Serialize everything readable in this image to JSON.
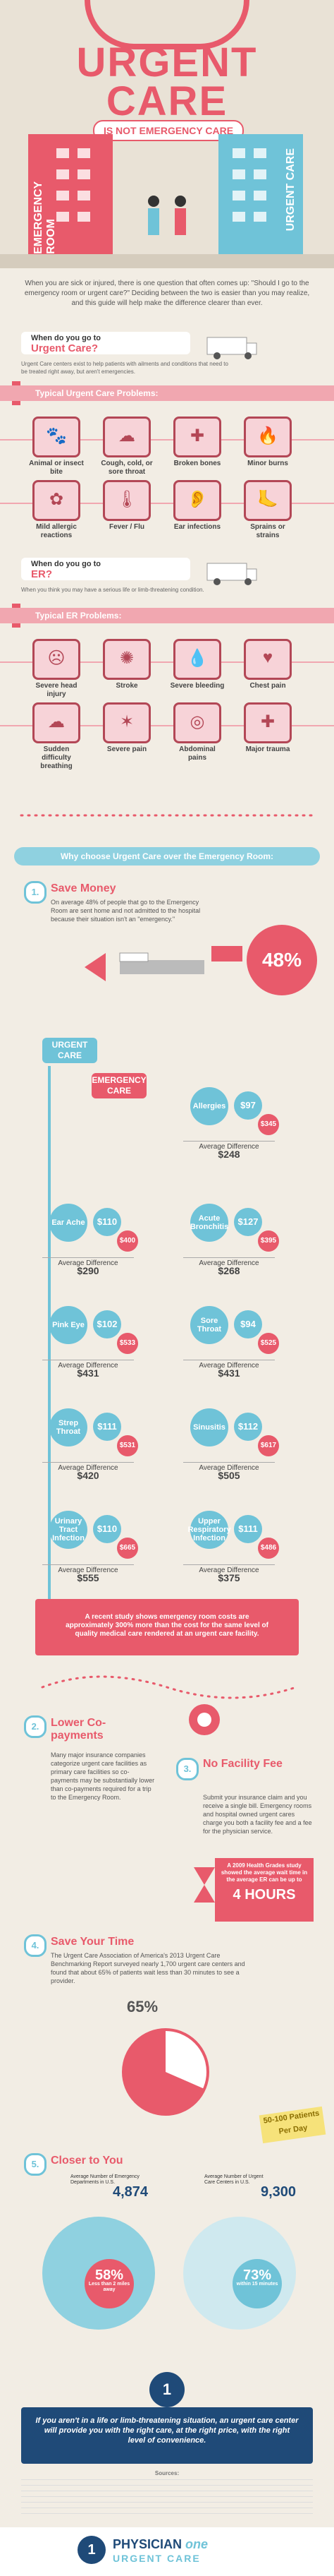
{
  "header": {
    "title_word1": "URGENT",
    "title_word2": "CARE",
    "subtitle": "IS NOT EMERGENCY CARE",
    "er_building_label": "EMERGENCY ROOM",
    "uc_building_label": "URGENT CARE"
  },
  "intro_text": "When you are sick or injured, there is one question that often comes up: \"Should I go to the emergency room or urgent care?\" Deciding between the two is easier than you may realize, and this guide will help make the difference clearer than ever.",
  "urgent_section": {
    "q1": "When do you go to",
    "q2": "Urgent Care?",
    "desc": "Urgent Care centers exist to help patients with ailments and conditions that need to be treated right away, but aren't emergencies.",
    "bar_label": "Typical Urgent Care Problems:",
    "items": [
      "Animal or insect bite",
      "Cough, cold, or sore throat",
      "Broken bones",
      "Minor burns",
      "Mild allergic reactions",
      "Fever / Flu",
      "Ear infections",
      "Sprains or strains"
    ]
  },
  "er_section": {
    "q1": "When do you go to",
    "q2": "ER?",
    "desc": "When you think you may have a serious life or limb-threatening condition.",
    "bar_label": "Typical ER Problems:",
    "items": [
      "Severe head injury",
      "Stroke",
      "Severe bleeding",
      "Chest pain",
      "Sudden difficulty breathing",
      "Severe pain",
      "Abdominal pains",
      "Major trauma"
    ]
  },
  "why_bar": "Why choose Urgent Care over the Emergency Room:",
  "step1": {
    "num": "1.",
    "title": "Save Money",
    "text": "On average 48% of people that go to the Emergency Room are sent home and not admitted to the hospital because their situation isn't an \"emergency.\"",
    "pct": "48%"
  },
  "comparison": {
    "uc_label": "URGENT CARE",
    "er_label": "EMERGENCY CARE",
    "rows": [
      {
        "name": "Allergies",
        "uc": "$97",
        "er": "$345",
        "diff": "$248"
      },
      {
        "name": "Ear Ache",
        "uc": "$110",
        "er": "$400",
        "diff": "$290"
      },
      {
        "name": "Acute Bronchitis",
        "uc": "$127",
        "er": "$395",
        "diff": "$268"
      },
      {
        "name": "Pink Eye",
        "uc": "$102",
        "er": "$533",
        "diff": "$431"
      },
      {
        "name": "Sore Throat",
        "uc": "$94",
        "er": "$525",
        "diff": "$431"
      },
      {
        "name": "Strep Throat",
        "uc": "$111",
        "er": "$531",
        "diff": "$420"
      },
      {
        "name": "Sinusitis",
        "uc": "$112",
        "er": "$617",
        "diff": "$505"
      },
      {
        "name": "Urinary Tract Infection",
        "uc": "$110",
        "er": "$665",
        "diff": "$555"
      },
      {
        "name": "Upper Respiratory Infection",
        "uc": "$111",
        "er": "$486",
        "diff": "$375"
      }
    ],
    "avg_label": "Average Difference"
  },
  "study_banner": "A recent study shows emergency room costs are approximately 300% more than the cost for the same level of quality medical care rendered at an urgent care facility.",
  "step2": {
    "num": "2.",
    "title": "Lower Co-payments",
    "text": "Many major insurance companies categorize urgent care facilities as primary care facilities so co-payments may be substantially lower than co-payments required for a trip to the Emergency Room."
  },
  "step3": {
    "num": "3.",
    "title": "No Facility Fee",
    "text": "Submit your insurance claim and you receive a single bill. Emergency rooms and hospital owned urgent cares charge you both a facility fee and a fee for the physician service."
  },
  "step4": {
    "num": "4.",
    "title": "Save Your Time",
    "text": "The Urgent Care Association of America's 2013 Urgent Care Benchmarking Report surveyed nearly 1,700 urgent care centers and found that about 65% of patients wait less than 30 minutes to see a provider.",
    "pct": "65%",
    "hours_note": "A 2009 Health Grades study showed the average wait time in the average ER can be up to",
    "hours": "4 HOURS"
  },
  "step5": {
    "num": "5.",
    "title": "Closer to You",
    "stat1_label": "Average Number of Emergency Departments in U.S.",
    "stat1": "4,874",
    "stat2_label": "Average Number of Urgent Care Centers in U.S.",
    "stat2": "9,300",
    "badge": "50-100 Patients Per Day",
    "pct1": "58%",
    "pct1_label": "Less than 2 miles away",
    "pct2": "73%",
    "pct2_label": "within 15 minutes"
  },
  "final_banner": "If you aren't in a life or limb-threatening situation, an urgent care center will provide you with the right care, at the right price, with the right level of convenience.",
  "sources_label": "Sources:",
  "logo": {
    "mark": "1",
    "name1": "PHYSICIAN",
    "name2": "one",
    "name3": "URGENT CARE"
  }
}
